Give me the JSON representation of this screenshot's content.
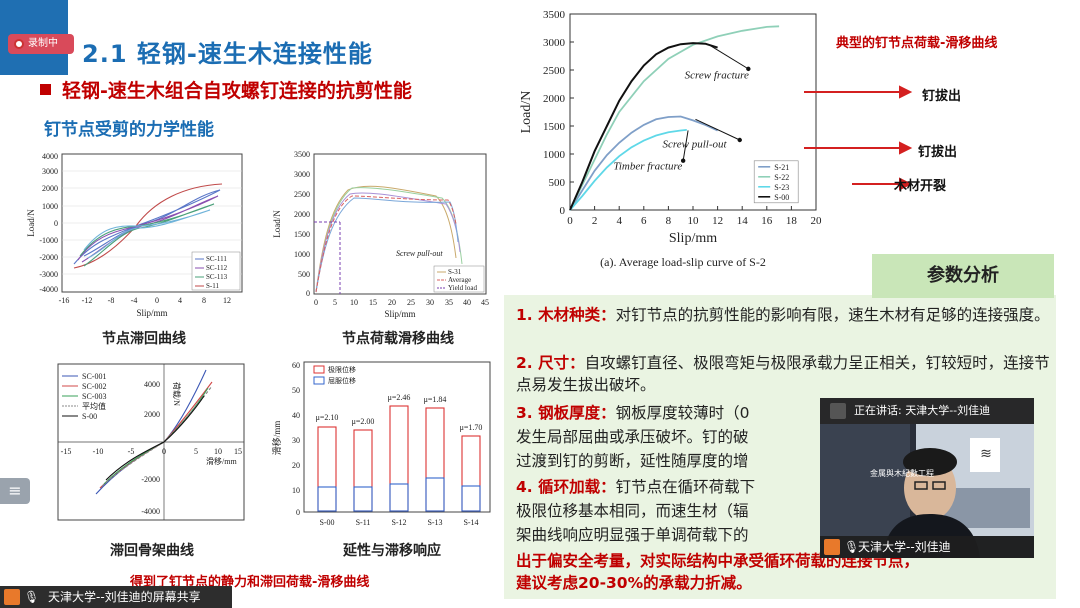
{
  "recording": {
    "badge": "录制中"
  },
  "header": {
    "section_title": "2.1 轻钢-速生木连接性能",
    "subtitle": "轻钢-速生木组合自攻螺钉连接的抗剪性能",
    "subheading": "钉节点受剪的力学性能"
  },
  "figures": {
    "hysteresis": {
      "caption": "节点滞回曲线",
      "xlabel": "Slip/mm",
      "ylabel": "Load/N",
      "xticks": [
        "-16",
        "-12",
        "-8",
        "-4",
        "0",
        "4",
        "8",
        "12"
      ],
      "yticks": [
        "4000",
        "3000",
        "2000",
        "1000",
        "0",
        "-1000",
        "-2000",
        "-3000",
        "-4000"
      ],
      "legend": [
        "SC-111",
        "SC-112",
        "SC-113",
        "S-11"
      ]
    },
    "load_slip_small": {
      "caption": "节点荷载滑移曲线",
      "xlabel": "Slip/mm",
      "ylabel": "Load/N",
      "xticks": [
        "0",
        "5",
        "10",
        "15",
        "20",
        "25",
        "30",
        "35",
        "40",
        "45"
      ],
      "yticks": [
        "3500",
        "3000",
        "2500",
        "2000",
        "1500",
        "1000",
        "500",
        "0"
      ],
      "annotation": "Screw pull-out",
      "legend": [
        "S-31",
        "Average",
        "Yield load"
      ]
    },
    "skeleton": {
      "caption": "滞回骨架曲线",
      "xlabel": "滑移/mm",
      "ylabel": "荷载/N",
      "xticks": [
        "-15",
        "-10",
        "-5",
        "0",
        "5",
        "10",
        "15"
      ],
      "yticks": [
        "4000",
        "2000",
        "-2000",
        "-4000"
      ],
      "legend": [
        "SC-001",
        "SC-002",
        "SC-003",
        "平均值",
        "S-00"
      ]
    },
    "ductility": {
      "caption": "延性与滞移响应",
      "ylabel": "滑移/mm",
      "yticks": [
        "60",
        "50",
        "40",
        "30",
        "20",
        "10",
        "0"
      ],
      "categories": [
        "S-00",
        "S-11",
        "S-12",
        "S-13",
        "S-14"
      ],
      "mu_labels": [
        "μ=2.10",
        "μ=2.00",
        "μ=2.46",
        "μ=1.84",
        "μ=1.70"
      ],
      "legend": [
        "极限位移",
        "屈服位移"
      ]
    },
    "bottom_caption": "得到了钉节点的静力和滞回荷载-滑移曲线"
  },
  "chart_data": {
    "type": "line",
    "title": "(a). Average load-slip curve of S-2",
    "xlabel": "Slip/mm",
    "ylabel": "Load/N",
    "xlim": [
      0,
      20
    ],
    "ylim": [
      0,
      3500
    ],
    "xticks": [
      0,
      2,
      4,
      6,
      8,
      10,
      12,
      14,
      16,
      18,
      20
    ],
    "yticks": [
      0,
      500,
      1000,
      1500,
      2000,
      2500,
      3000,
      3500
    ],
    "legend_position": "bottom-right",
    "series": [
      {
        "name": "S-21",
        "color": "#7f9fc8",
        "x": [
          0,
          1,
          2,
          3,
          4,
          5,
          6,
          7,
          8,
          9,
          10,
          11,
          12
        ],
        "y": [
          0,
          350,
          700,
          980,
          1200,
          1380,
          1520,
          1620,
          1660,
          1670,
          1600,
          1520,
          1420
        ]
      },
      {
        "name": "S-22",
        "color": "#8fd0b8",
        "x": [
          0,
          1,
          2,
          3,
          4,
          6,
          8,
          10,
          12,
          14,
          16,
          17
        ],
        "y": [
          0,
          450,
          900,
          1350,
          1750,
          2300,
          2700,
          2950,
          3100,
          3200,
          3270,
          3280
        ]
      },
      {
        "name": "S-23",
        "color": "#5fd8e8",
        "x": [
          0,
          1,
          2,
          3,
          4,
          5,
          6,
          7,
          8,
          9,
          9.5
        ],
        "y": [
          0,
          250,
          520,
          760,
          960,
          1120,
          1240,
          1330,
          1390,
          1420,
          1430
        ]
      },
      {
        "name": "S-00",
        "color": "#111111",
        "x": [
          0,
          1,
          2,
          3,
          4,
          5,
          6,
          7,
          8,
          9,
          10,
          11,
          12
        ],
        "y": [
          0,
          500,
          1050,
          1500,
          1950,
          2300,
          2580,
          2780,
          2900,
          2960,
          2980,
          2970,
          2900
        ]
      }
    ],
    "annotations": [
      {
        "text": "Screw fracture",
        "right_label": "钉拔出"
      },
      {
        "text": "Screw pull-out",
        "right_label": "钉拔出"
      },
      {
        "text": "Timber fracture",
        "right_label": "木材开裂"
      }
    ],
    "header_label": "典型的钉节点荷载-滑移曲线"
  },
  "analysis": {
    "title": "参数分析",
    "items": [
      {
        "num": "1. 木材种类：",
        "text": "对钉节点的抗剪性能的影响有限，速生木材有足够的连接强度。"
      },
      {
        "num": "2. 尺寸：",
        "text": "自攻螺钉直径、极限弯矩与极限承载力呈正相关，钉较短时，连接节点易发生拔出破坏。"
      },
      {
        "num": "3. 钢板厚度：",
        "text": "钢板厚度较薄时（0"
      },
      {
        "num": "",
        "text": "发生局部屈曲或承压破坏。钉的破"
      },
      {
        "num": "",
        "text": "过渡到钉的剪断，延性随厚度的增"
      },
      {
        "num": "4. 循环加载：",
        "text": "钉节点在循环荷载下"
      },
      {
        "num": "",
        "text": "极限位移基本相同，而速生材（辐"
      },
      {
        "num": "",
        "text": "架曲线响应明显强于单调荷载下的"
      }
    ],
    "conclusion_1": "出于偏安全考量，对实际结构中承受循环荷载的连接节点，",
    "conclusion_2": "建议考虑20-30%的承载力折减。"
  },
  "video": {
    "speaking": "正在讲话: 天津大学--刘佳迪",
    "name": "天津大学--刘佳迪",
    "screen_text": "金属與木紀數工程"
  },
  "taskbar": {
    "share_label": "天津大学--刘佳迪的屏幕共享"
  },
  "sidebar": {
    "menu_icon": "≡"
  }
}
